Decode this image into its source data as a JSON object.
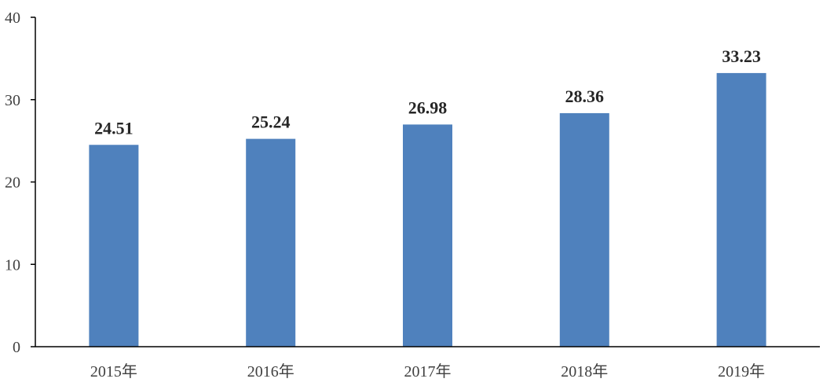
{
  "chart_data": {
    "type": "bar",
    "categories": [
      "2015年",
      "2016年",
      "2017年",
      "2018年",
      "2019年"
    ],
    "values": [
      24.51,
      25.24,
      26.98,
      28.36,
      33.23
    ],
    "data_labels": [
      "24.51",
      "25.24",
      "26.98",
      "28.36",
      "33.23"
    ],
    "yticks": [
      "0",
      "10",
      "20",
      "30",
      "40"
    ],
    "ylim": [
      0,
      40
    ],
    "grid": false,
    "legend": "none",
    "colors": {
      "bar": "#4f81bd",
      "axis": "#000000",
      "tick_text": "#404040",
      "label_text": "#262626"
    }
  }
}
